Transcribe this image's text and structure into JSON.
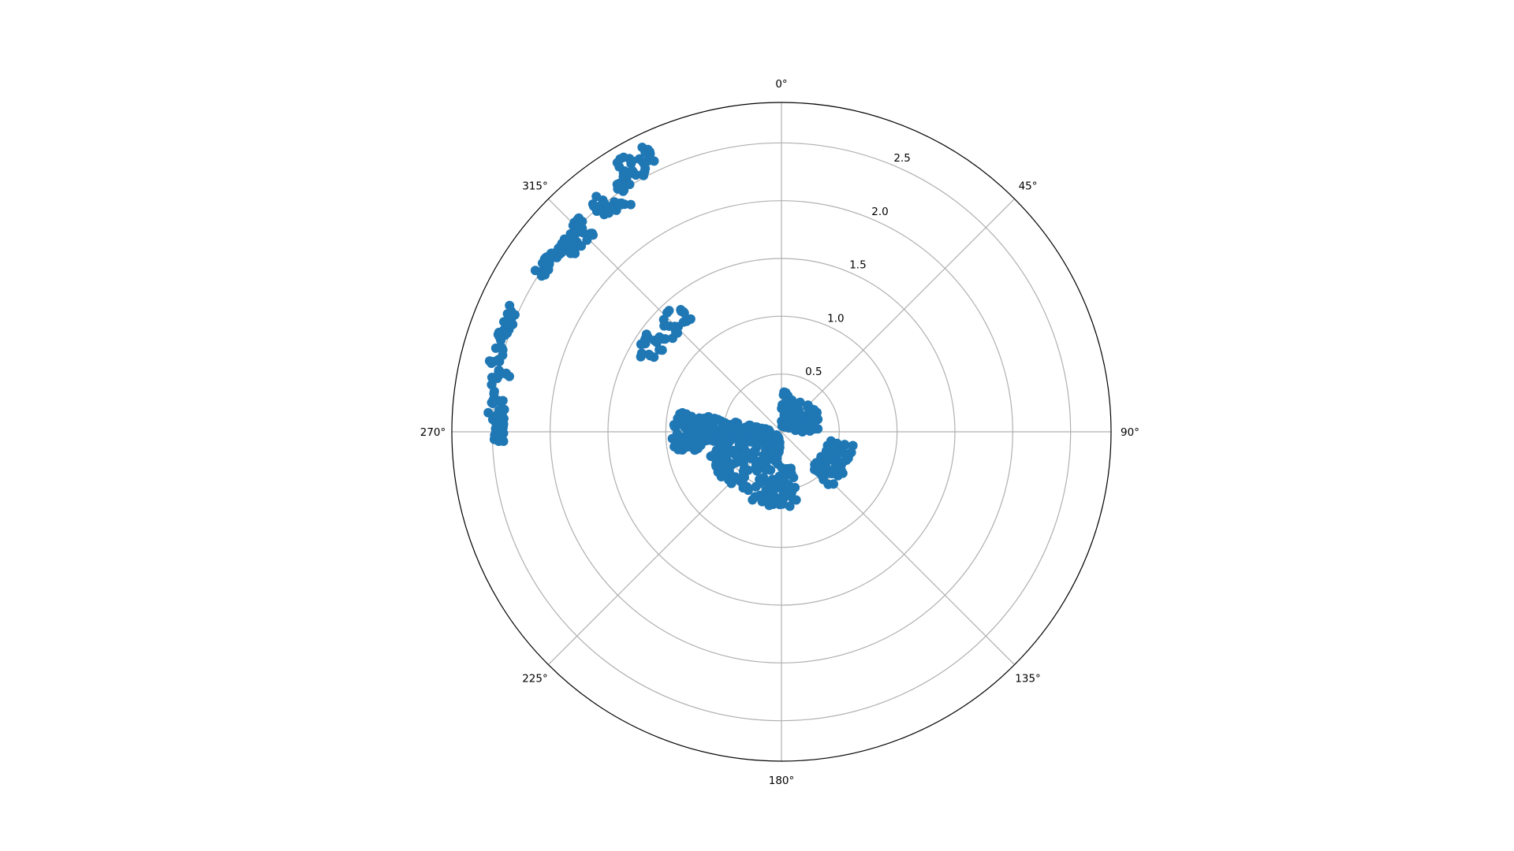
{
  "chart_data": {
    "type": "scatter",
    "projection": "polar",
    "theta_zero_location": "N",
    "theta_direction": "clockwise",
    "rlim": [
      0,
      2.85
    ],
    "rticks": [
      0.5,
      1.0,
      1.5,
      2.0,
      2.5
    ],
    "rtick_labels": [
      "0.5",
      "1.0",
      "1.5",
      "2.0",
      "2.5"
    ],
    "theta_ticks_deg": [
      0,
      45,
      90,
      135,
      180,
      225,
      270,
      315
    ],
    "theta_tick_labels": [
      "0°",
      "45°",
      "90°",
      "135°",
      "180°",
      "225°",
      "270°",
      "315°"
    ],
    "grid": true,
    "marker_color": "#1f77b4",
    "series": [
      {
        "clusters": [
          {
            "theta_range": [
              268,
              273
            ],
            "r_range": [
              2.4,
              2.5
            ],
            "count": 55
          },
          {
            "theta_range": [
              273,
              283
            ],
            "r_range": [
              2.4,
              2.55
            ],
            "count": 25
          },
          {
            "theta_range": [
              283,
              295
            ],
            "r_range": [
              2.5,
              2.6
            ],
            "count": 35
          },
          {
            "theta_range": [
              303,
              312
            ],
            "r_range": [
              2.45,
              2.55
            ],
            "count": 30
          },
          {
            "theta_range": [
              310,
              317
            ],
            "r_range": [
              2.35,
              2.55
            ],
            "count": 35
          },
          {
            "theta_range": [
              320,
              327
            ],
            "r_range": [
              2.35,
              2.6
            ],
            "count": 30
          },
          {
            "theta_range": [
              328,
              335
            ],
            "r_range": [
              2.5,
              2.75
            ],
            "count": 35
          },
          {
            "theta_range": [
              298,
              322
            ],
            "r_range": [
              1.2,
              1.45
            ],
            "count": 40
          },
          {
            "theta_range": [
              258,
              282
            ],
            "r_range": [
              0.1,
              0.95
            ],
            "count": 220
          },
          {
            "theta_range": [
              185,
              255
            ],
            "r_range": [
              0.05,
              0.65
            ],
            "count": 160
          },
          {
            "theta_range": [
              100,
              140
            ],
            "r_range": [
              0.4,
              0.65
            ],
            "count": 60
          },
          {
            "theta_range": [
              0,
              90
            ],
            "r_range": [
              0.05,
              0.35
            ],
            "count": 90
          },
          {
            "theta_range": [
              165,
              190
            ],
            "r_range": [
              0.3,
              0.65
            ],
            "count": 40
          }
        ]
      }
    ]
  }
}
